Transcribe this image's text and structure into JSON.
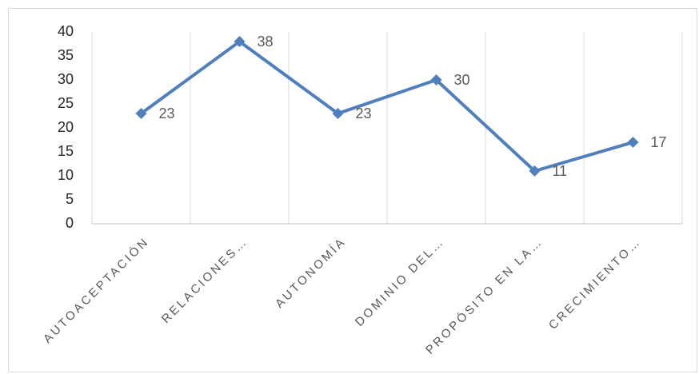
{
  "chart_data": {
    "type": "line",
    "categories": [
      "AUTOACEPTACIÓN",
      "RELACIONES…",
      "AUTONOMÍA",
      "DOMINIO DEL…",
      "PROPÓSITO EN LA…",
      "CRECIMIENTO…"
    ],
    "series": [
      {
        "values": [
          23,
          38,
          23,
          30,
          11,
          17
        ],
        "color": "#4f7fbd"
      }
    ],
    "ylim": [
      0,
      40
    ],
    "yticks": [
      0,
      5,
      10,
      15,
      20,
      25,
      30,
      35,
      40
    ],
    "grid": true,
    "data_labels": true
  }
}
